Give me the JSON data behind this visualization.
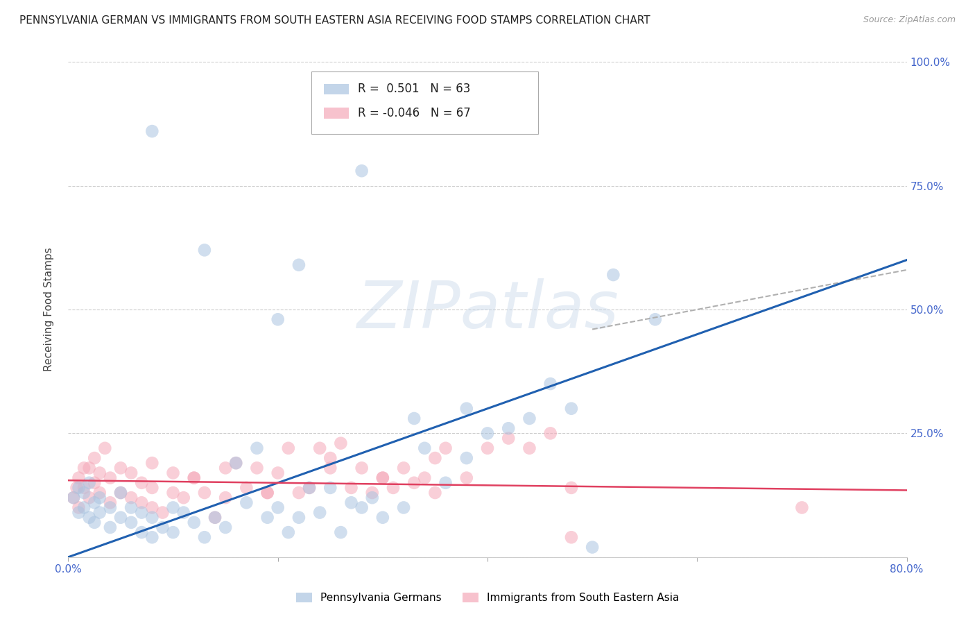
{
  "title": "PENNSYLVANIA GERMAN VS IMMIGRANTS FROM SOUTH EASTERN ASIA RECEIVING FOOD STAMPS CORRELATION CHART",
  "source": "Source: ZipAtlas.com",
  "ylabel": "Receiving Food Stamps",
  "xlim": [
    0.0,
    0.8
  ],
  "ylim": [
    0.0,
    1.0
  ],
  "blue_color": "#aac4e0",
  "pink_color": "#f5a8b8",
  "blue_line_color": "#2060b0",
  "pink_line_color": "#e04060",
  "dashed_line_color": "#b0b0b0",
  "r_blue": 0.501,
  "n_blue": 63,
  "r_pink": -0.046,
  "n_pink": 67,
  "legend_label_blue": "Pennsylvania Germans",
  "legend_label_pink": "Immigrants from South Eastern Asia",
  "watermark": "ZIPatlas",
  "blue_scatter_x": [
    0.005,
    0.01,
    0.01,
    0.015,
    0.015,
    0.02,
    0.02,
    0.025,
    0.025,
    0.03,
    0.03,
    0.04,
    0.04,
    0.05,
    0.05,
    0.06,
    0.06,
    0.07,
    0.07,
    0.08,
    0.08,
    0.09,
    0.1,
    0.1,
    0.11,
    0.12,
    0.13,
    0.14,
    0.15,
    0.16,
    0.17,
    0.18,
    0.19,
    0.2,
    0.21,
    0.22,
    0.23,
    0.24,
    0.25,
    0.26,
    0.27,
    0.28,
    0.29,
    0.3,
    0.32,
    0.33,
    0.34,
    0.36,
    0.38,
    0.4,
    0.42,
    0.44,
    0.46,
    0.48,
    0.5,
    0.52,
    0.56,
    0.38,
    0.2,
    0.22,
    0.08,
    0.28,
    0.13
  ],
  "blue_scatter_y": [
    0.12,
    0.09,
    0.14,
    0.1,
    0.13,
    0.08,
    0.15,
    0.07,
    0.11,
    0.09,
    0.12,
    0.06,
    0.1,
    0.08,
    0.13,
    0.07,
    0.1,
    0.05,
    0.09,
    0.04,
    0.08,
    0.06,
    0.05,
    0.1,
    0.09,
    0.07,
    0.04,
    0.08,
    0.06,
    0.19,
    0.11,
    0.22,
    0.08,
    0.1,
    0.05,
    0.08,
    0.14,
    0.09,
    0.14,
    0.05,
    0.11,
    0.1,
    0.12,
    0.08,
    0.1,
    0.28,
    0.22,
    0.15,
    0.3,
    0.25,
    0.26,
    0.28,
    0.35,
    0.3,
    0.02,
    0.57,
    0.48,
    0.2,
    0.48,
    0.59,
    0.86,
    0.78,
    0.62
  ],
  "pink_scatter_x": [
    0.005,
    0.008,
    0.01,
    0.01,
    0.015,
    0.015,
    0.02,
    0.02,
    0.025,
    0.025,
    0.03,
    0.03,
    0.035,
    0.04,
    0.04,
    0.05,
    0.05,
    0.06,
    0.06,
    0.07,
    0.07,
    0.08,
    0.08,
    0.09,
    0.1,
    0.1,
    0.11,
    0.12,
    0.13,
    0.14,
    0.15,
    0.16,
    0.17,
    0.18,
    0.19,
    0.2,
    0.21,
    0.22,
    0.23,
    0.24,
    0.25,
    0.26,
    0.27,
    0.28,
    0.29,
    0.3,
    0.31,
    0.32,
    0.33,
    0.34,
    0.35,
    0.36,
    0.38,
    0.4,
    0.42,
    0.44,
    0.46,
    0.48,
    0.25,
    0.3,
    0.35,
    0.19,
    0.15,
    0.08,
    0.12,
    0.7,
    0.48
  ],
  "pink_scatter_y": [
    0.12,
    0.14,
    0.16,
    0.1,
    0.14,
    0.18,
    0.12,
    0.18,
    0.15,
    0.2,
    0.13,
    0.17,
    0.22,
    0.11,
    0.16,
    0.13,
    0.18,
    0.12,
    0.17,
    0.11,
    0.15,
    0.1,
    0.14,
    0.09,
    0.13,
    0.17,
    0.12,
    0.16,
    0.13,
    0.08,
    0.12,
    0.19,
    0.14,
    0.18,
    0.13,
    0.17,
    0.22,
    0.13,
    0.14,
    0.22,
    0.18,
    0.23,
    0.14,
    0.18,
    0.13,
    0.16,
    0.14,
    0.18,
    0.15,
    0.16,
    0.13,
    0.22,
    0.16,
    0.22,
    0.24,
    0.22,
    0.25,
    0.14,
    0.2,
    0.16,
    0.2,
    0.13,
    0.18,
    0.19,
    0.16,
    0.1,
    0.04
  ],
  "blue_trendline": [
    0.0,
    0.0,
    0.8,
    0.6
  ],
  "pink_trendline": [
    0.0,
    0.155,
    0.8,
    0.135
  ],
  "dashed_line": [
    0.5,
    0.46,
    0.8,
    0.58
  ],
  "xtick_positions": [
    0.0,
    0.2,
    0.4,
    0.6,
    0.8
  ],
  "xtick_labels": [
    "0.0%",
    "",
    "",
    "",
    "80.0%"
  ],
  "ytick_positions": [
    0.0,
    0.25,
    0.5,
    0.75,
    1.0
  ],
  "ytick_labels_right": [
    "",
    "25.0%",
    "50.0%",
    "75.0%",
    "100.0%"
  ],
  "tick_color": "#4466cc",
  "grid_color": "#cccccc",
  "title_fontsize": 11,
  "source_fontsize": 9,
  "axis_label_fontsize": 11,
  "tick_fontsize": 11
}
